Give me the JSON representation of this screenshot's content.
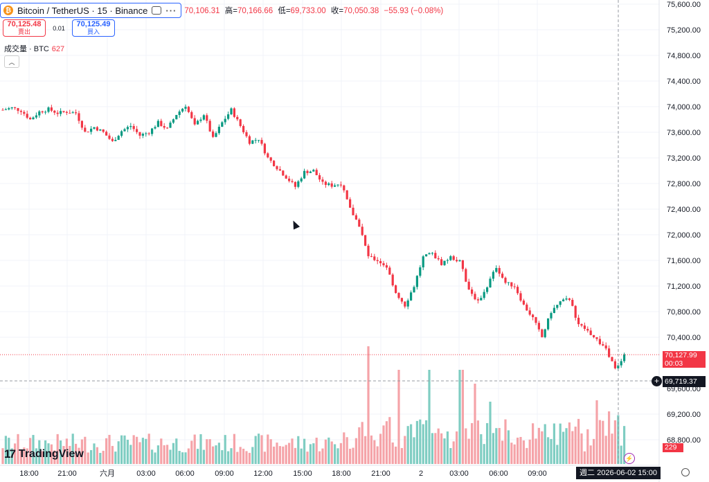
{
  "header": {
    "symbol_title": "Bitcoin / TetherUS · 15 · Binance",
    "btc_glyph": "₿",
    "open_value": "70,106.31",
    "high_label": "高=",
    "high_value": "70,166.66",
    "low_label": "低=",
    "low_value": "69,733.00",
    "close_label": "收=",
    "close_value": "70,050.38",
    "change_value": "−55.93 (−0.08%)"
  },
  "trade": {
    "sell_price": "70,125.48",
    "sell_label": "賣出",
    "spread": "0.01",
    "buy_price": "70,125.49",
    "buy_label": "買入"
  },
  "volume_indicator": {
    "label": "成交量 · BTC",
    "value": "627"
  },
  "price_axis": {
    "labels": [
      "75,600.00",
      "75,200.00",
      "74,800.00",
      "74,400.00",
      "74,000.00",
      "73,600.00",
      "73,200.00",
      "72,800.00",
      "72,400.00",
      "72,000.00",
      "71,600.00",
      "71,200.00",
      "70,800.00",
      "70,400.00",
      "69,600.00",
      "69,200.00",
      "68,800.00"
    ],
    "last_price": "70,127.99",
    "countdown": "00:03",
    "crosshair_price": "69,719.37",
    "volume_value": "229"
  },
  "time_axis": {
    "labels": [
      "18:00",
      "21:00",
      "六月",
      "03:00",
      "06:00",
      "09:00",
      "12:00",
      "15:00",
      "18:00",
      "21:00",
      "2",
      "03:00",
      "06:00",
      "09:00"
    ],
    "crosshair_date": "週二 2026-06-02   15:00"
  },
  "logo": {
    "text": "TradingView",
    "mark": "17"
  },
  "colors": {
    "up": "#089981",
    "down": "#f23645",
    "up_vol": "#7fcdc2",
    "down_vol": "#f5a3a8"
  },
  "chart_data": {
    "type": "candlestick",
    "ylim": [
      68500,
      75700
    ],
    "price_ticks": [
      75600,
      75200,
      74800,
      74400,
      74000,
      73600,
      73200,
      72800,
      72400,
      72000,
      71600,
      71200,
      70800,
      70400,
      69600,
      69200,
      68800
    ],
    "last_price": 70127.99,
    "crosshair_price": 69719.37,
    "close_path": [
      [
        0,
        73950
      ],
      [
        3,
        73980
      ],
      [
        6,
        73940
      ],
      [
        9,
        73800
      ],
      [
        12,
        73920
      ],
      [
        15,
        73960
      ],
      [
        18,
        73900
      ],
      [
        21,
        73920
      ],
      [
        24,
        73900
      ],
      [
        27,
        73600
      ],
      [
        30,
        73680
      ],
      [
        33,
        73600
      ],
      [
        36,
        73450
      ],
      [
        39,
        73620
      ],
      [
        42,
        73700
      ],
      [
        45,
        73550
      ],
      [
        48,
        73600
      ],
      [
        51,
        73750
      ],
      [
        54,
        73650
      ],
      [
        57,
        73880
      ],
      [
        60,
        74020
      ],
      [
        63,
        73700
      ],
      [
        66,
        73880
      ],
      [
        69,
        73500
      ],
      [
        72,
        73750
      ],
      [
        75,
        73950
      ],
      [
        78,
        73700
      ],
      [
        81,
        73450
      ],
      [
        84,
        73500
      ],
      [
        87,
        73200
      ],
      [
        90,
        73050
      ],
      [
        93,
        72900
      ],
      [
        96,
        72750
      ],
      [
        99,
        72980
      ],
      [
        102,
        73000
      ],
      [
        105,
        72800
      ],
      [
        108,
        72770
      ],
      [
        111,
        72800
      ],
      [
        114,
        72400
      ],
      [
        117,
        72150
      ],
      [
        120,
        71650
      ],
      [
        123,
        71600
      ],
      [
        126,
        71500
      ],
      [
        129,
        71100
      ],
      [
        132,
        70900
      ],
      [
        135,
        71200
      ],
      [
        138,
        71650
      ],
      [
        141,
        71700
      ],
      [
        144,
        71550
      ],
      [
        147,
        71650
      ],
      [
        150,
        71580
      ],
      [
        153,
        71150
      ],
      [
        156,
        70950
      ],
      [
        159,
        71200
      ],
      [
        162,
        71500
      ],
      [
        165,
        71250
      ],
      [
        168,
        71200
      ],
      [
        171,
        70900
      ],
      [
        174,
        70700
      ],
      [
        177,
        70400
      ],
      [
        180,
        70800
      ],
      [
        183,
        70950
      ],
      [
        186,
        71000
      ],
      [
        189,
        70600
      ],
      [
        192,
        70500
      ],
      [
        195,
        70350
      ],
      [
        198,
        70230
      ],
      [
        201,
        69900
      ],
      [
        204,
        70127.99
      ]
    ],
    "volume_spikes": [
      [
        120,
        8.5
      ],
      [
        130,
        6.8
      ],
      [
        140,
        6.8
      ],
      [
        150,
        6.8
      ],
      [
        151,
        6.8
      ],
      [
        155,
        5.8
      ],
      [
        160,
        4.5
      ],
      [
        186,
        3.0
      ],
      [
        195,
        4.6
      ],
      [
        199,
        3.8
      ]
    ]
  }
}
